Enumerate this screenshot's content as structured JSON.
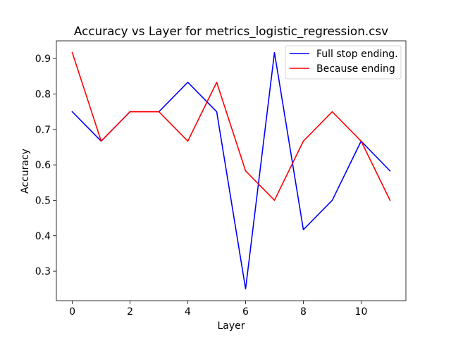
{
  "chart_data": {
    "type": "line",
    "title": "Accuracy vs Layer for metrics_logistic_regression.csv",
    "xlabel": "Layer",
    "ylabel": "Accuracy",
    "x": [
      0,
      1,
      2,
      3,
      4,
      5,
      6,
      7,
      8,
      9,
      10,
      11
    ],
    "xlim": [
      -0.55,
      11.55
    ],
    "ylim": [
      0.2167,
      0.95
    ],
    "xticks": [
      0,
      2,
      4,
      6,
      8,
      10
    ],
    "yticks": [
      0.3,
      0.4,
      0.5,
      0.6,
      0.7,
      0.8,
      0.9
    ],
    "ytick_labels": [
      "0.3",
      "0.4",
      "0.5",
      "0.6",
      "0.7",
      "0.8",
      "0.9"
    ],
    "grid": false,
    "legend_position": "upper right",
    "series": [
      {
        "name": "Full stop ending.",
        "color": "#0000ff",
        "values": [
          0.75,
          0.667,
          0.75,
          0.75,
          0.833,
          0.75,
          0.25,
          0.917,
          0.417,
          0.5,
          0.667,
          0.583
        ]
      },
      {
        "name": "Because ending",
        "color": "#ff0000",
        "values": [
          0.917,
          0.667,
          0.75,
          0.75,
          0.667,
          0.833,
          0.583,
          0.5,
          0.667,
          0.75,
          0.667,
          0.5
        ]
      }
    ]
  }
}
